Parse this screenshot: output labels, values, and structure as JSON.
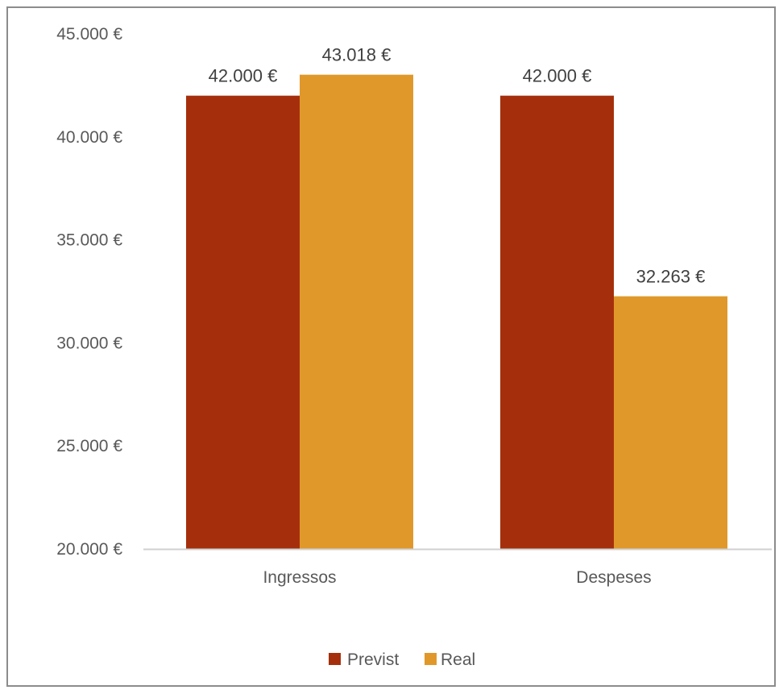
{
  "chart_data": {
    "type": "bar",
    "title": "",
    "xlabel": "",
    "ylabel": "",
    "categories": [
      "Ingressos",
      "Despeses"
    ],
    "series": [
      {
        "name": "Previst",
        "color": "#A52F0C",
        "values": [
          42000,
          42000
        ],
        "labels": [
          "42.000 €",
          "42.000 €"
        ]
      },
      {
        "name": "Real",
        "color": "#E0982A",
        "values": [
          43018,
          32263
        ],
        "labels": [
          "43.018 €",
          "32.263 €"
        ]
      }
    ],
    "ylim": [
      20000,
      45000
    ],
    "yticks": [
      20000,
      25000,
      30000,
      35000,
      40000,
      45000
    ],
    "ytick_labels": [
      "20.000 €",
      "25.000 €",
      "30.000 €",
      "35.000 €",
      "40.000 €",
      "45.000 €"
    ],
    "grid": false,
    "legend": "bottom"
  }
}
